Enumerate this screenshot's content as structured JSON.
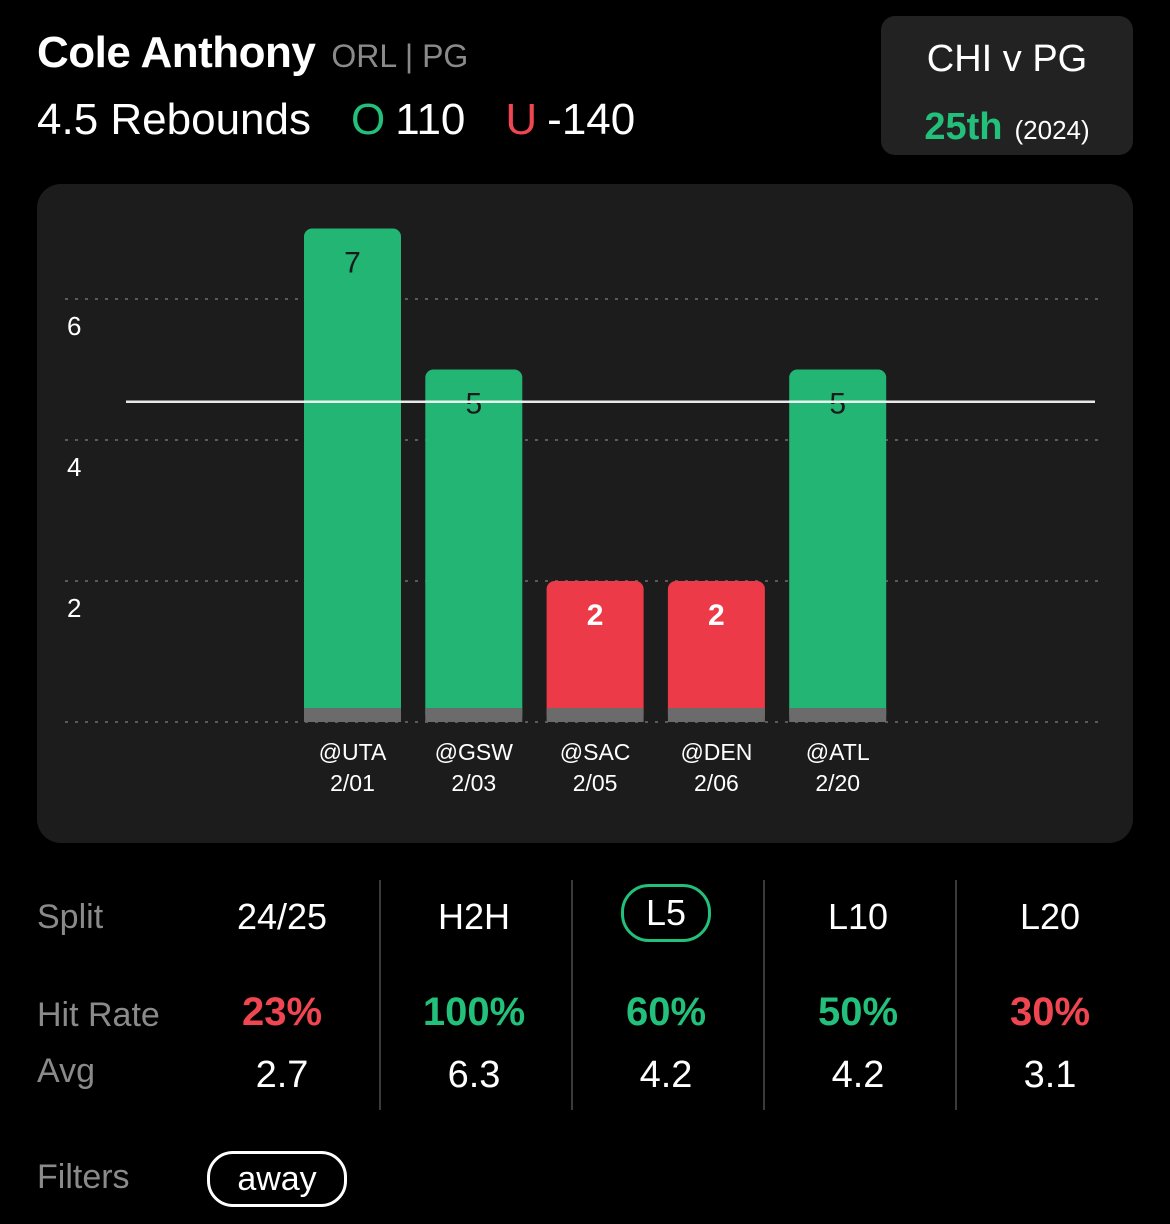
{
  "header": {
    "player_name": "Cole Anthony",
    "team_pos": "ORL | PG",
    "prop_line": "4.5 Rebounds",
    "over_symbol": "O",
    "over_odds": "110",
    "under_symbol": "U",
    "under_odds": "-140"
  },
  "matchup": {
    "title": "CHI v PG",
    "rank": "25th",
    "year": "(2024)"
  },
  "chart_data": {
    "type": "bar",
    "categories": [
      "@UTA",
      "@GSW",
      "@SAC",
      "@DEN",
      "@ATL"
    ],
    "dates": [
      "2/01",
      "2/03",
      "2/05",
      "2/06",
      "2/20"
    ],
    "values": [
      7,
      5,
      2,
      2,
      5
    ],
    "line": 4.5,
    "yticks": [
      2,
      4,
      6
    ],
    "ylim": [
      0,
      7
    ],
    "grid": true,
    "colors": {
      "over": "#22b573",
      "under": "#ec3a49",
      "base": "#6b6b6b"
    }
  },
  "stats": {
    "split_label": "Split",
    "hit_label": "Hit Rate",
    "avg_label": "Avg",
    "columns": [
      {
        "name": "24/25",
        "hit": "23%",
        "avg": "2.7",
        "hit_color": "#ef4652"
      },
      {
        "name": "H2H",
        "hit": "100%",
        "avg": "6.3",
        "hit_color": "#22c07a"
      },
      {
        "name": "L5",
        "hit": "60%",
        "avg": "4.2",
        "hit_color": "#22c07a"
      },
      {
        "name": "L10",
        "hit": "50%",
        "avg": "4.2",
        "hit_color": "#22c07a"
      },
      {
        "name": "L20",
        "hit": "30%",
        "avg": "3.1",
        "hit_color": "#ef4652"
      }
    ],
    "selected": "L5"
  },
  "filters": {
    "label": "Filters",
    "chip": "away"
  }
}
